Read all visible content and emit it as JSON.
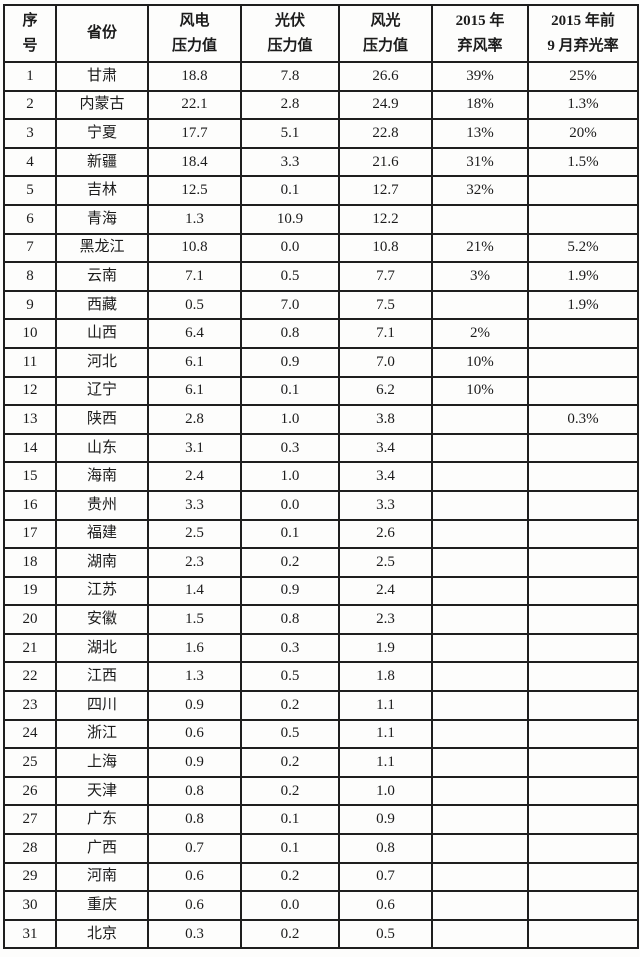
{
  "table": {
    "headers": [
      {
        "key": "no",
        "label": "序\n号"
      },
      {
        "key": "province",
        "label": "省份"
      },
      {
        "key": "wind-pressure",
        "label": "风电\n压力值"
      },
      {
        "key": "pv-pressure",
        "label": "光伏\n压力值"
      },
      {
        "key": "wind-pv-pressure",
        "label": "风光\n压力值"
      },
      {
        "key": "wind-curtailment-2015",
        "label": "2015 年\n弃风率"
      },
      {
        "key": "pv-curtailment-2015",
        "label": "2015 年前\n9 月弃光率"
      }
    ],
    "rows": [
      [
        "1",
        "甘肃",
        "18.8",
        "7.8",
        "26.6",
        "39%",
        "25%"
      ],
      [
        "2",
        "内蒙古",
        "22.1",
        "2.8",
        "24.9",
        "18%",
        "1.3%"
      ],
      [
        "3",
        "宁夏",
        "17.7",
        "5.1",
        "22.8",
        "13%",
        "20%"
      ],
      [
        "4",
        "新疆",
        "18.4",
        "3.3",
        "21.6",
        "31%",
        "1.5%"
      ],
      [
        "5",
        "吉林",
        "12.5",
        "0.1",
        "12.7",
        "32%",
        ""
      ],
      [
        "6",
        "青海",
        "1.3",
        "10.9",
        "12.2",
        "",
        ""
      ],
      [
        "7",
        "黑龙江",
        "10.8",
        "0.0",
        "10.8",
        "21%",
        "5.2%"
      ],
      [
        "8",
        "云南",
        "7.1",
        "0.5",
        "7.7",
        "3%",
        "1.9%"
      ],
      [
        "9",
        "西藏",
        "0.5",
        "7.0",
        "7.5",
        "",
        "1.9%"
      ],
      [
        "10",
        "山西",
        "6.4",
        "0.8",
        "7.1",
        "2%",
        ""
      ],
      [
        "11",
        "河北",
        "6.1",
        "0.9",
        "7.0",
        "10%",
        ""
      ],
      [
        "12",
        "辽宁",
        "6.1",
        "0.1",
        "6.2",
        "10%",
        ""
      ],
      [
        "13",
        "陕西",
        "2.8",
        "1.0",
        "3.8",
        "",
        "0.3%"
      ],
      [
        "14",
        "山东",
        "3.1",
        "0.3",
        "3.4",
        "",
        ""
      ],
      [
        "15",
        "海南",
        "2.4",
        "1.0",
        "3.4",
        "",
        ""
      ],
      [
        "16",
        "贵州",
        "3.3",
        "0.0",
        "3.3",
        "",
        ""
      ],
      [
        "17",
        "福建",
        "2.5",
        "0.1",
        "2.6",
        "",
        ""
      ],
      [
        "18",
        "湖南",
        "2.3",
        "0.2",
        "2.5",
        "",
        ""
      ],
      [
        "19",
        "江苏",
        "1.4",
        "0.9",
        "2.4",
        "",
        ""
      ],
      [
        "20",
        "安徽",
        "1.5",
        "0.8",
        "2.3",
        "",
        ""
      ],
      [
        "21",
        "湖北",
        "1.6",
        "0.3",
        "1.9",
        "",
        ""
      ],
      [
        "22",
        "江西",
        "1.3",
        "0.5",
        "1.8",
        "",
        ""
      ],
      [
        "23",
        "四川",
        "0.9",
        "0.2",
        "1.1",
        "",
        ""
      ],
      [
        "24",
        "浙江",
        "0.6",
        "0.5",
        "1.1",
        "",
        ""
      ],
      [
        "25",
        "上海",
        "0.9",
        "0.2",
        "1.1",
        "",
        ""
      ],
      [
        "26",
        "天津",
        "0.8",
        "0.2",
        "1.0",
        "",
        ""
      ],
      [
        "27",
        "广东",
        "0.8",
        "0.1",
        "0.9",
        "",
        ""
      ],
      [
        "28",
        "广西",
        "0.7",
        "0.1",
        "0.8",
        "",
        ""
      ],
      [
        "29",
        "河南",
        "0.6",
        "0.2",
        "0.7",
        "",
        ""
      ],
      [
        "30",
        "重庆",
        "0.6",
        "0.0",
        "0.6",
        "",
        ""
      ],
      [
        "31",
        "北京",
        "0.3",
        "0.2",
        "0.5",
        "",
        ""
      ]
    ]
  },
  "colors": {
    "rule": "#1e1e1e",
    "paper": "#fdfdfc",
    "ink": "#1b1b1b"
  }
}
